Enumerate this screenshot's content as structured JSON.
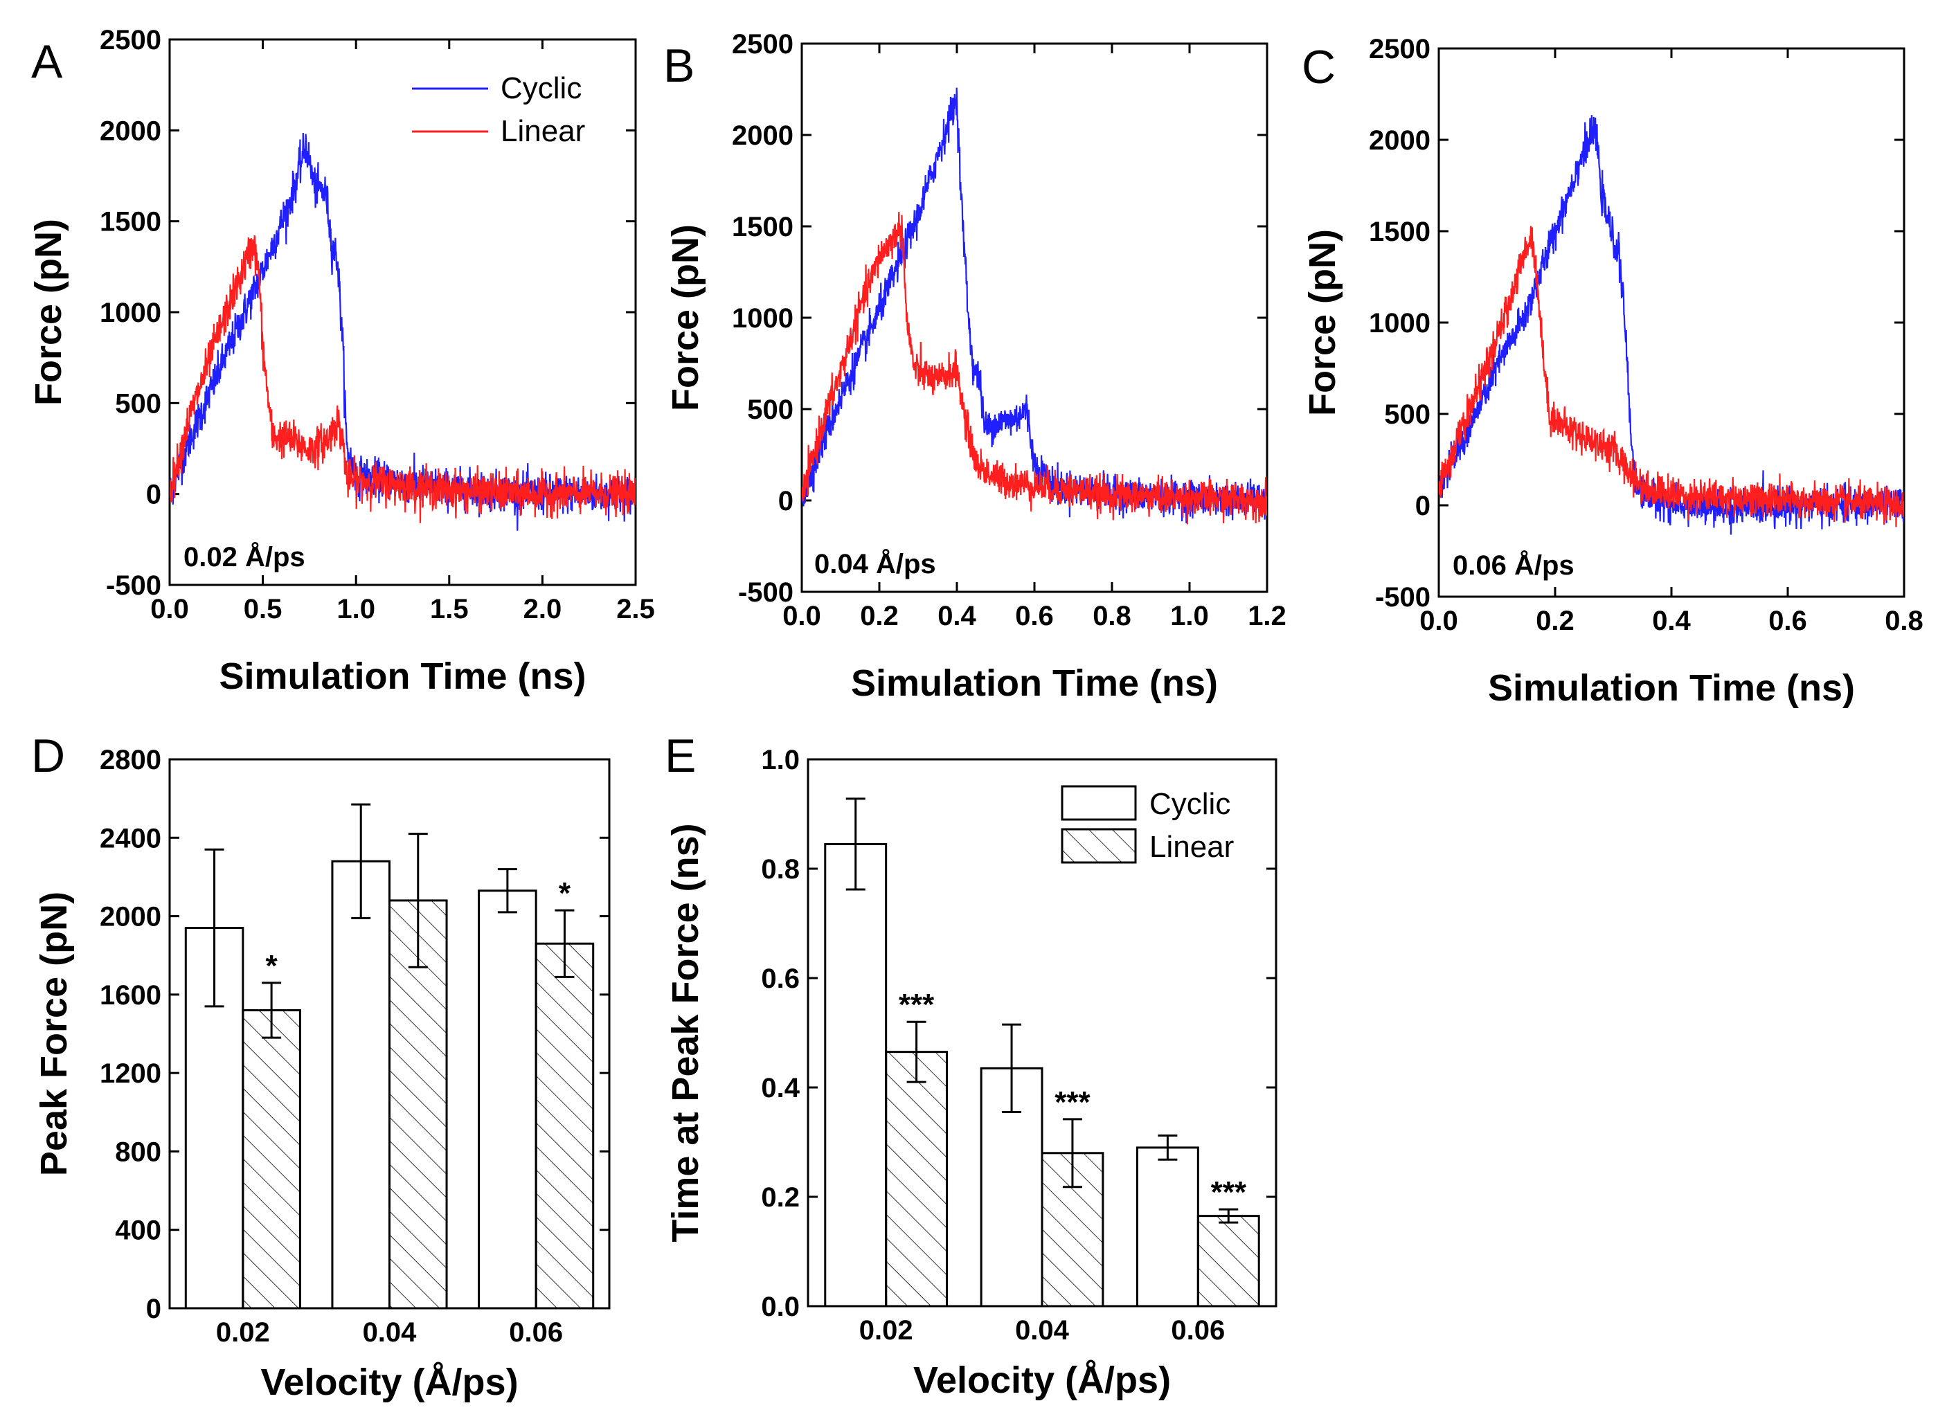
{
  "chart_data": [
    {
      "id": "A",
      "type": "line",
      "panel_label": "A",
      "xlabel": "Simulation Time (ns)",
      "ylabel": "Force (pN)",
      "xlim": [
        0,
        2.5
      ],
      "ylim": [
        -500,
        2500
      ],
      "xticks": [
        0,
        0.5,
        1.0,
        1.5,
        2.0,
        2.5
      ],
      "xtick_labels": [
        "0.0",
        "0.5",
        "1.0",
        "1.5",
        "2.0",
        "2.5"
      ],
      "yticks": [
        -500,
        0,
        500,
        1000,
        1500,
        2000,
        2500
      ],
      "ytick_labels": [
        "-500",
        "0",
        "500",
        "1000",
        "1500",
        "2000",
        "2500"
      ],
      "annotation": "0.02 Å/ps",
      "legend": [
        "Cyclic",
        "Linear"
      ],
      "series": [
        {
          "name": "Cyclic",
          "color": "#1f1fff",
          "noise": 95,
          "points": [
            [
              0,
              0
            ],
            [
              0.1,
              280
            ],
            [
              0.3,
              760
            ],
            [
              0.5,
              1230
            ],
            [
              0.65,
              1620
            ],
            [
              0.73,
              1920
            ],
            [
              0.78,
              1680
            ],
            [
              0.8,
              1680
            ],
            [
              0.84,
              1650
            ],
            [
              0.87,
              1360
            ],
            [
              0.9,
              1300
            ],
            [
              0.93,
              800
            ],
            [
              0.95,
              250
            ],
            [
              1.0,
              100
            ],
            [
              1.5,
              30
            ],
            [
              2.0,
              0
            ],
            [
              2.5,
              0
            ]
          ]
        },
        {
          "name": "Linear",
          "color": "#ff1f1f",
          "noise": 95,
          "points": [
            [
              0,
              0
            ],
            [
              0.1,
              400
            ],
            [
              0.25,
              850
            ],
            [
              0.35,
              1120
            ],
            [
              0.45,
              1380
            ],
            [
              0.48,
              1200
            ],
            [
              0.5,
              800
            ],
            [
              0.55,
              320
            ],
            [
              0.65,
              300
            ],
            [
              0.75,
              240
            ],
            [
              0.85,
              300
            ],
            [
              0.9,
              400
            ],
            [
              0.93,
              300
            ],
            [
              0.95,
              80
            ],
            [
              1.5,
              20
            ],
            [
              2.0,
              0
            ],
            [
              2.5,
              0
            ]
          ]
        }
      ]
    },
    {
      "id": "B",
      "type": "line",
      "panel_label": "B",
      "xlabel": "Simulation Time (ns)",
      "ylabel": "Force (pN)",
      "xlim": [
        0,
        1.2
      ],
      "ylim": [
        -500,
        2500
      ],
      "xticks": [
        0,
        0.2,
        0.4,
        0.6,
        0.8,
        1.0,
        1.2
      ],
      "xtick_labels": [
        "0.0",
        "0.2",
        "0.4",
        "0.6",
        "0.8",
        "1.0",
        "1.2"
      ],
      "yticks": [
        -500,
        0,
        500,
        1000,
        1500,
        2000,
        2500
      ],
      "ytick_labels": [
        "-500",
        "0",
        "500",
        "1000",
        "1500",
        "2000",
        "2500"
      ],
      "annotation": "0.04 Å/ps",
      "series": [
        {
          "name": "Cyclic",
          "color": "#1f1fff",
          "noise": 85,
          "points": [
            [
              0,
              0
            ],
            [
              0.05,
              300
            ],
            [
              0.1,
              560
            ],
            [
              0.2,
              1040
            ],
            [
              0.3,
              1560
            ],
            [
              0.38,
              2080
            ],
            [
              0.4,
              2200
            ],
            [
              0.41,
              1700
            ],
            [
              0.43,
              1000
            ],
            [
              0.44,
              750
            ],
            [
              0.46,
              650
            ],
            [
              0.47,
              400
            ],
            [
              0.5,
              420
            ],
            [
              0.55,
              450
            ],
            [
              0.58,
              500
            ],
            [
              0.6,
              200
            ],
            [
              0.65,
              80
            ],
            [
              0.8,
              30
            ],
            [
              1.2,
              0
            ]
          ]
        },
        {
          "name": "Linear",
          "color": "#ff1f1f",
          "noise": 85,
          "points": [
            [
              0,
              0
            ],
            [
              0.05,
              400
            ],
            [
              0.1,
              700
            ],
            [
              0.15,
              1050
            ],
            [
              0.2,
              1330
            ],
            [
              0.25,
              1480
            ],
            [
              0.26,
              1480
            ],
            [
              0.27,
              1000
            ],
            [
              0.29,
              720
            ],
            [
              0.35,
              650
            ],
            [
              0.38,
              700
            ],
            [
              0.4,
              720
            ],
            [
              0.42,
              450
            ],
            [
              0.45,
              200
            ],
            [
              0.5,
              120
            ],
            [
              0.6,
              80
            ],
            [
              0.8,
              30
            ],
            [
              1.2,
              0
            ]
          ]
        }
      ]
    },
    {
      "id": "C",
      "type": "line",
      "panel_label": "C",
      "xlabel": "Simulation Time (ns)",
      "ylabel": "Force (pN)",
      "xlim": [
        0,
        0.8
      ],
      "ylim": [
        -500,
        2500
      ],
      "xticks": [
        0,
        0.2,
        0.4,
        0.6,
        0.8
      ],
      "xtick_labels": [
        "0.0",
        "0.2",
        "0.4",
        "0.6",
        "0.8"
      ],
      "yticks": [
        -500,
        0,
        500,
        1000,
        1500,
        2000,
        2500
      ],
      "ytick_labels": [
        "-500",
        "0",
        "500",
        "1000",
        "1500",
        "2000",
        "2500"
      ],
      "annotation": "0.06 Å/ps",
      "series": [
        {
          "name": "Cyclic",
          "color": "#1f1fff",
          "noise": 85,
          "points": [
            [
              0,
              100
            ],
            [
              0.05,
              400
            ],
            [
              0.1,
              760
            ],
            [
              0.15,
              1050
            ],
            [
              0.2,
              1500
            ],
            [
              0.25,
              1950
            ],
            [
              0.27,
              2050
            ],
            [
              0.28,
              1700
            ],
            [
              0.3,
              1450
            ],
            [
              0.31,
              1380
            ],
            [
              0.32,
              1000
            ],
            [
              0.33,
              400
            ],
            [
              0.34,
              80
            ],
            [
              0.4,
              0
            ],
            [
              0.5,
              -20
            ],
            [
              0.6,
              0
            ],
            [
              0.8,
              0
            ]
          ]
        },
        {
          "name": "Linear",
          "color": "#ff1f1f",
          "noise": 85,
          "points": [
            [
              0,
              100
            ],
            [
              0.05,
              500
            ],
            [
              0.1,
              900
            ],
            [
              0.13,
              1200
            ],
            [
              0.16,
              1500
            ],
            [
              0.17,
              1200
            ],
            [
              0.18,
              800
            ],
            [
              0.19,
              500
            ],
            [
              0.22,
              420
            ],
            [
              0.3,
              300
            ],
            [
              0.35,
              100
            ],
            [
              0.4,
              60
            ],
            [
              0.6,
              30
            ],
            [
              0.8,
              0
            ]
          ]
        }
      ]
    },
    {
      "id": "D",
      "type": "bar",
      "panel_label": "D",
      "xlabel": "Velocity (Å/ps)",
      "ylabel": "Peak Force (pN)",
      "ylim": [
        0,
        2800
      ],
      "yticks": [
        0,
        400,
        800,
        1200,
        1600,
        2000,
        2400,
        2800
      ],
      "ytick_labels": [
        "0",
        "400",
        "800",
        "1200",
        "1600",
        "2000",
        "2400",
        "2800"
      ],
      "categories": [
        "0.02",
        "0.04",
        "0.06"
      ],
      "series": [
        {
          "name": "Cyclic",
          "values": [
            1940,
            2280,
            2130
          ],
          "errors": [
            400,
            290,
            110
          ],
          "significance": [
            "",
            "",
            ""
          ]
        },
        {
          "name": "Linear",
          "values": [
            1520,
            2080,
            1860
          ],
          "errors": [
            140,
            340,
            170
          ],
          "significance": [
            "*",
            "",
            "*"
          ]
        }
      ]
    },
    {
      "id": "E",
      "type": "bar",
      "panel_label": "E",
      "xlabel": "Velocity (Å/ps)",
      "ylabel": "Time at Peak Force (ns)",
      "ylim": [
        0,
        1.0
      ],
      "yticks": [
        0,
        0.2,
        0.4,
        0.6,
        0.8,
        1.0
      ],
      "ytick_labels": [
        "0.0",
        "0.2",
        "0.4",
        "0.6",
        "0.8",
        "1.0"
      ],
      "categories": [
        "0.02",
        "0.04",
        "0.06"
      ],
      "legend": [
        "Cyclic",
        "Linear"
      ],
      "series": [
        {
          "name": "Cyclic",
          "values": [
            0.845,
            0.435,
            0.29
          ],
          "errors": [
            0.083,
            0.08,
            0.022
          ],
          "significance": [
            "",
            "",
            ""
          ]
        },
        {
          "name": "Linear",
          "values": [
            0.465,
            0.28,
            0.165
          ],
          "errors": [
            0.055,
            0.062,
            0.012
          ],
          "significance": [
            "***",
            "***",
            "***"
          ]
        }
      ]
    }
  ]
}
